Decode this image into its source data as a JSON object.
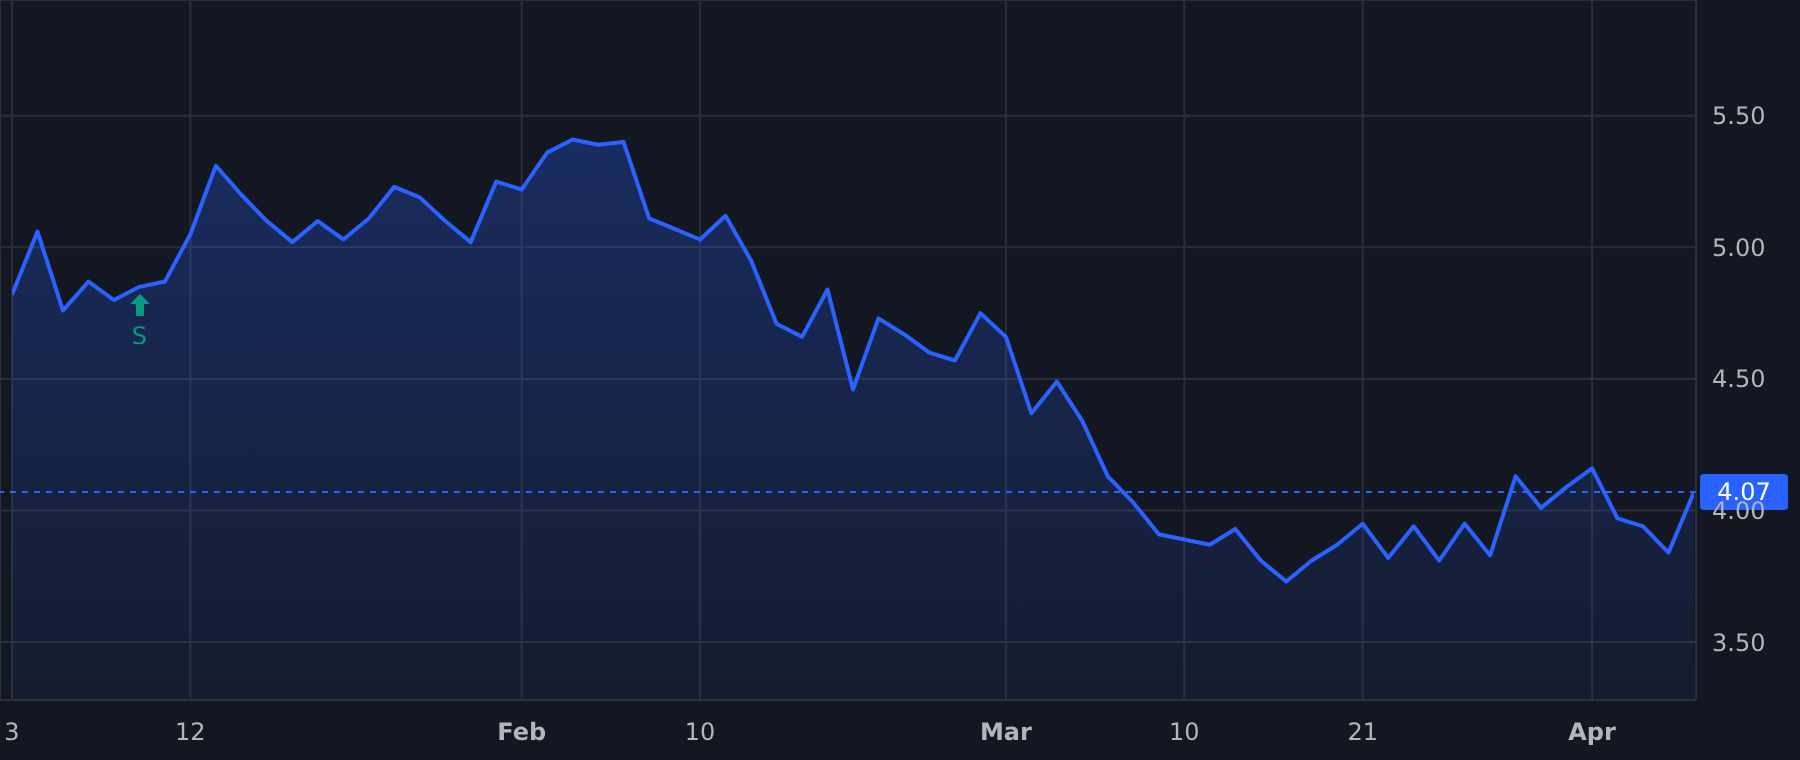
{
  "chart_data": {
    "type": "area",
    "categories": [
      "3",
      null,
      null,
      null,
      null,
      null,
      null,
      "12",
      null,
      null,
      null,
      null,
      null,
      null,
      null,
      null,
      null,
      null,
      null,
      null,
      "Feb",
      null,
      null,
      null,
      null,
      null,
      null,
      "10",
      null,
      null,
      null,
      null,
      null,
      null,
      null,
      null,
      null,
      null,
      null,
      "Mar",
      null,
      null,
      null,
      null,
      null,
      null,
      "10",
      null,
      null,
      null,
      null,
      null,
      null,
      "21",
      null,
      null,
      null,
      null,
      null,
      null,
      null,
      null,
      "Apr",
      null,
      null,
      null,
      null
    ],
    "series": [
      {
        "color": "#2962ff",
        "values": [
          4.82,
          5.06,
          4.76,
          4.87,
          4.8,
          4.85,
          4.87,
          5.05,
          5.31,
          5.2,
          5.1,
          5.02,
          5.1,
          5.03,
          5.11,
          5.23,
          5.19,
          5.1,
          5.02,
          5.25,
          5.22,
          5.36,
          5.41,
          5.39,
          5.4,
          5.11,
          5.07,
          5.03,
          5.12,
          4.95,
          4.71,
          4.66,
          4.84,
          4.46,
          4.73,
          4.67,
          4.6,
          4.57,
          4.75,
          4.66,
          4.37,
          4.49,
          4.34,
          4.13,
          4.03,
          3.91,
          3.89,
          3.87,
          3.93,
          3.81,
          3.73,
          3.81,
          3.87,
          3.95,
          3.82,
          3.94,
          3.81,
          3.95,
          3.83,
          4.13,
          4.01,
          4.09,
          4.16,
          3.97,
          3.94,
          3.84,
          4.07
        ]
      }
    ],
    "ylim": [
      3.28,
      5.94
    ],
    "yticks": [
      {
        "value": 3.5,
        "label": "3.50"
      },
      {
        "value": 4,
        "label": "4.00"
      },
      {
        "value": 4.5,
        "label": "4.50"
      },
      {
        "value": 5,
        "label": "5.00"
      },
      {
        "value": 5.5,
        "label": "5.50"
      }
    ],
    "grid": true,
    "marker": "none",
    "line_style": "solid",
    "ref_lines": [
      {
        "axis": "y",
        "value": 4.07,
        "label": "4.07",
        "color": "#2962ff",
        "line_style": "dashed"
      }
    ],
    "annotations": [
      "S"
    ]
  }
}
